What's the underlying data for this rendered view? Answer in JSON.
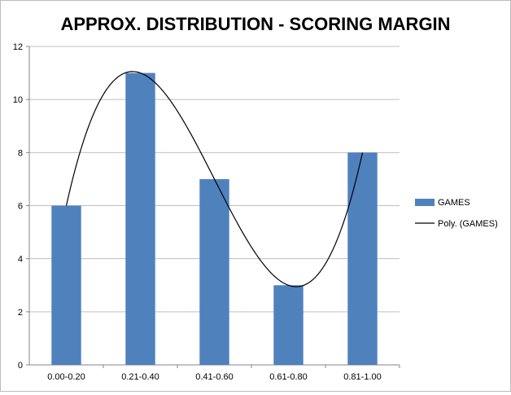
{
  "chart_data": {
    "type": "bar",
    "title": "APPROX. DISTRIBUTION - SCORING MARGIN",
    "xlabel": "",
    "ylabel": "",
    "categories": [
      "0.00-0.20",
      "0.21-0.40",
      "0.41-0.60",
      "0.61-0.80",
      "0.81-1.00"
    ],
    "series": [
      {
        "name": "GAMES",
        "type": "bar",
        "values": [
          6,
          11,
          7,
          3,
          8
        ],
        "color": "#4f81bd"
      },
      {
        "name": "Poly. (GAMES)",
        "type": "line",
        "style": "polynomial-trendline",
        "color": "#000000"
      }
    ],
    "ylim": [
      0,
      12
    ],
    "yticks": [
      0,
      2,
      4,
      6,
      8,
      10,
      12
    ],
    "grid": true,
    "legend_position": "right"
  }
}
